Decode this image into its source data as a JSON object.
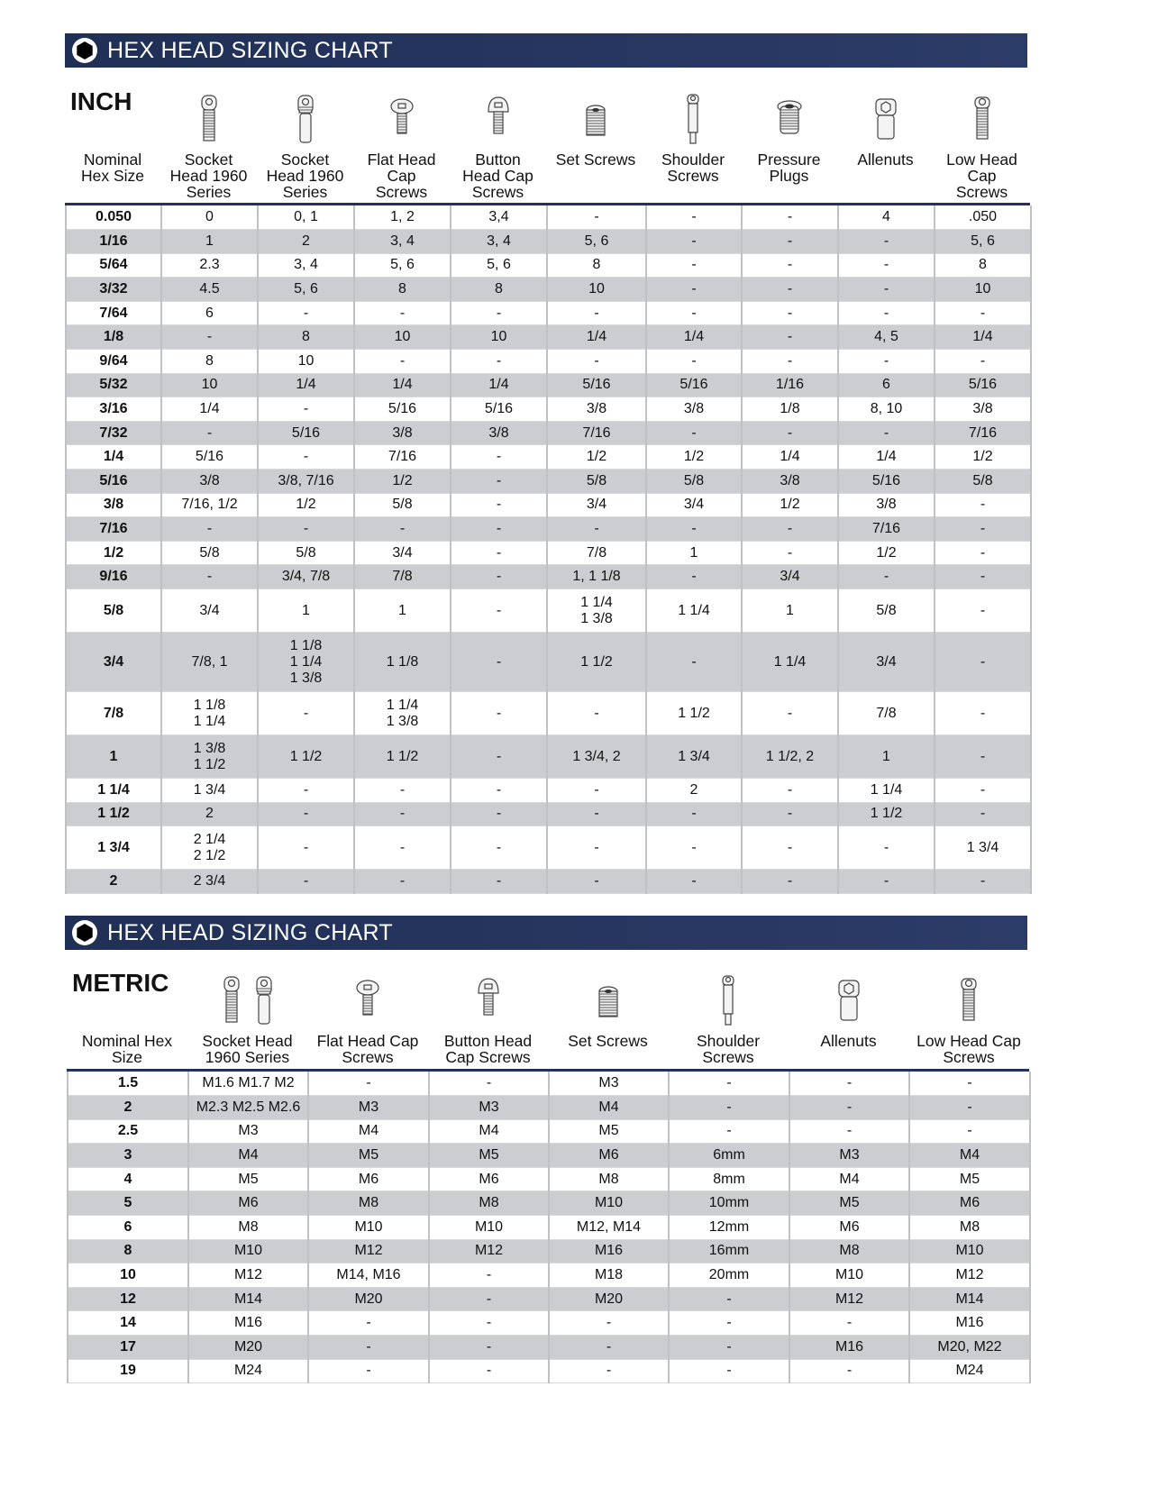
{
  "colors": {
    "banner": "#26355f",
    "row_alt": "#cbcdd0",
    "rule": "#223160"
  },
  "inch": {
    "banner_title": "HEX HEAD SIZING CHART",
    "banner_icon": "hexagon-icon",
    "unit_label": "INCH",
    "columns": [
      {
        "label": "Nominal\nHex Size",
        "icons": []
      },
      {
        "label": "Socket\nHead 1960\nSeries",
        "icons": [
          "socket-head-cap-screw-icon"
        ]
      },
      {
        "label": "Socket\nHead 1960\nSeries",
        "icons": [
          "socket-head-dowel-screw-icon"
        ]
      },
      {
        "label": "Flat Head\nCap\nScrews",
        "icons": [
          "flat-head-screw-icon"
        ]
      },
      {
        "label": "Button\nHead Cap\nScrews",
        "icons": [
          "button-head-screw-icon"
        ]
      },
      {
        "label": "Set Screws",
        "icons": [
          "set-screw-icon"
        ]
      },
      {
        "label": "Shoulder\nScrews",
        "icons": [
          "shoulder-screw-icon"
        ]
      },
      {
        "label": "Pressure\nPlugs",
        "icons": [
          "pressure-plug-icon"
        ]
      },
      {
        "label": "Allenuts",
        "icons": [
          "allenut-icon"
        ]
      },
      {
        "label": "Low Head\nCap\nScrews",
        "icons": [
          "low-head-cap-screw-icon"
        ]
      }
    ],
    "rows": [
      [
        "0.050",
        "0",
        "0, 1",
        "1, 2",
        "3,4",
        "-",
        "-",
        "-",
        "4",
        ".050"
      ],
      [
        "1/16",
        "1",
        "2",
        "3, 4",
        "3, 4",
        "5, 6",
        "-",
        "-",
        "-",
        "5, 6"
      ],
      [
        "5/64",
        "2.3",
        "3, 4",
        "5, 6",
        "5, 6",
        "8",
        "-",
        "-",
        "-",
        "8"
      ],
      [
        "3/32",
        "4.5",
        "5, 6",
        "8",
        "8",
        "10",
        "-",
        "-",
        "-",
        "10"
      ],
      [
        "7/64",
        "6",
        "-",
        "-",
        "-",
        "-",
        "-",
        "-",
        "-",
        "-"
      ],
      [
        "1/8",
        "-",
        "8",
        "10",
        "10",
        "1/4",
        "1/4",
        "-",
        "4, 5",
        "1/4"
      ],
      [
        "9/64",
        "8",
        "10",
        "-",
        "-",
        "-",
        "-",
        "-",
        "-",
        "-"
      ],
      [
        "5/32",
        "10",
        "1/4",
        "1/4",
        "1/4",
        "5/16",
        "5/16",
        "1/16",
        "6",
        "5/16"
      ],
      [
        "3/16",
        "1/4",
        "-",
        "5/16",
        "5/16",
        "3/8",
        "3/8",
        "1/8",
        "8, 10",
        "3/8"
      ],
      [
        "7/32",
        "-",
        "5/16",
        "3/8",
        "3/8",
        "7/16",
        "-",
        "-",
        "-",
        "7/16"
      ],
      [
        "1/4",
        "5/16",
        "-",
        "7/16",
        "-",
        "1/2",
        "1/2",
        "1/4",
        "1/4",
        "1/2"
      ],
      [
        "5/16",
        "3/8",
        "3/8, 7/16",
        "1/2",
        "-",
        "5/8",
        "5/8",
        "3/8",
        "5/16",
        "5/8"
      ],
      [
        "3/8",
        "7/16, 1/2",
        "1/2",
        "5/8",
        "-",
        "3/4",
        "3/4",
        "1/2",
        "3/8",
        "-"
      ],
      [
        "7/16",
        "-",
        "-",
        "-",
        "-",
        "-",
        "-",
        "-",
        "7/16",
        "-"
      ],
      [
        "1/2",
        "5/8",
        "5/8",
        "3/4",
        "-",
        "7/8",
        "1",
        "-",
        "1/2",
        "-"
      ],
      [
        "9/16",
        "-",
        "3/4, 7/8",
        "7/8",
        "-",
        "1, 1 1/8",
        "-",
        "3/4",
        "-",
        "-"
      ],
      [
        "5/8",
        "3/4",
        "1",
        "1",
        "-",
        "1 1/4\n1 3/8",
        "1 1/4",
        "1",
        "5/8",
        "-"
      ],
      [
        "3/4",
        "7/8, 1",
        "1 1/8\n1 1/4\n1 3/8",
        "1 1/8",
        "-",
        "1 1/2",
        "-",
        "1 1/4",
        "3/4",
        "-"
      ],
      [
        "7/8",
        "1 1/8\n1 1/4",
        "-",
        "1 1/4\n1 3/8",
        "-",
        "-",
        "1 1/2",
        "-",
        "7/8",
        "-"
      ],
      [
        "1",
        "1 3/8\n1 1/2",
        "1 1/2",
        "1 1/2",
        "-",
        "1 3/4, 2",
        "1 3/4",
        "1 1/2, 2",
        "1",
        "-"
      ],
      [
        "1 1/4",
        "1 3/4",
        "-",
        "-",
        "-",
        "-",
        "2",
        "-",
        "1 1/4",
        "-"
      ],
      [
        "1 1/2",
        "2",
        "-",
        "-",
        "-",
        "-",
        "-",
        "-",
        "1 1/2",
        "-"
      ],
      [
        "1 3/4",
        "2 1/4\n2 1/2",
        "-",
        "-",
        "-",
        "-",
        "-",
        "-",
        "-",
        "1 3/4"
      ],
      [
        "2",
        "2 3/4",
        "-",
        "-",
        "-",
        "-",
        "-",
        "-",
        "-",
        "-"
      ]
    ]
  },
  "metric": {
    "banner_title": "HEX HEAD SIZING CHART",
    "banner_icon": "hexagon-icon",
    "unit_label": "METRIC",
    "columns": [
      {
        "label": "Nominal Hex\nSize",
        "icons": []
      },
      {
        "label": "Socket Head\n1960 Series",
        "icons": [
          "socket-head-cap-screw-icon",
          "socket-head-dowel-screw-icon"
        ]
      },
      {
        "label": "Flat Head Cap\nScrews",
        "icons": [
          "flat-head-screw-icon"
        ]
      },
      {
        "label": "Button Head\nCap Screws",
        "icons": [
          "button-head-screw-icon"
        ]
      },
      {
        "label": "Set Screws",
        "icons": [
          "set-screw-icon"
        ]
      },
      {
        "label": "Shoulder\nScrews",
        "icons": [
          "shoulder-screw-icon"
        ]
      },
      {
        "label": "Allenuts",
        "icons": [
          "allenut-icon"
        ]
      },
      {
        "label": "Low Head Cap\nScrews",
        "icons": [
          "low-head-cap-screw-icon"
        ]
      }
    ],
    "rows": [
      [
        "1.5",
        "M1.6 M1.7 M2",
        "-",
        "-",
        "M3",
        "-",
        "-",
        "-"
      ],
      [
        "2",
        "M2.3 M2.5 M2.6",
        "M3",
        "M3",
        "M4",
        "-",
        "-",
        "-"
      ],
      [
        "2.5",
        "M3",
        "M4",
        "M4",
        "M5",
        "-",
        "-",
        "-"
      ],
      [
        "3",
        "M4",
        "M5",
        "M5",
        "M6",
        "6mm",
        "M3",
        "M4"
      ],
      [
        "4",
        "M5",
        "M6",
        "M6",
        "M8",
        "8mm",
        "M4",
        "M5"
      ],
      [
        "5",
        "M6",
        "M8",
        "M8",
        "M10",
        "10mm",
        "M5",
        "M6"
      ],
      [
        "6",
        "M8",
        "M10",
        "M10",
        "M12, M14",
        "12mm",
        "M6",
        "M8"
      ],
      [
        "8",
        "M10",
        "M12",
        "M12",
        "M16",
        "16mm",
        "M8",
        "M10"
      ],
      [
        "10",
        "M12",
        "M14, M16",
        "-",
        "M18",
        "20mm",
        "M10",
        "M12"
      ],
      [
        "12",
        "M14",
        "M20",
        "-",
        "M20",
        "-",
        "M12",
        "M14"
      ],
      [
        "14",
        "M16",
        "-",
        "-",
        "-",
        "-",
        "-",
        "M16"
      ],
      [
        "17",
        "M20",
        "-",
        "-",
        "-",
        "-",
        "M16",
        "M20, M22"
      ],
      [
        "19",
        "M24",
        "-",
        "-",
        "-",
        "-",
        "-",
        "M24"
      ]
    ]
  }
}
